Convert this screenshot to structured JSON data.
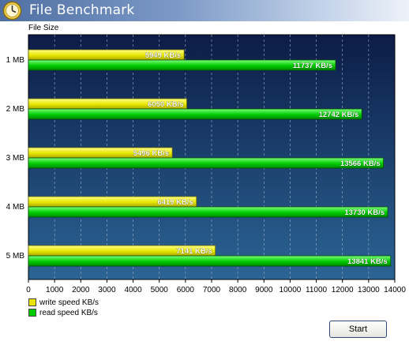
{
  "window": {
    "title": "File Benchmark"
  },
  "chart_data": {
    "type": "bar",
    "orientation": "horizontal",
    "ylabel": "File Size",
    "categories": [
      "1 MB",
      "2 MB",
      "3 MB",
      "4 MB",
      "5 MB"
    ],
    "series": [
      {
        "name": "write speed KB/s",
        "color": "#e6e600",
        "values": [
          5949,
          6050,
          5496,
          6419,
          7141
        ],
        "labels": [
          "5949 KB/s",
          "6050 KB/s",
          "5496 KB/s",
          "6419 KB/s",
          "7141 KB/s"
        ]
      },
      {
        "name": "read speed KB/s",
        "color": "#00cc00",
        "values": [
          11737,
          12742,
          13566,
          13730,
          13841
        ],
        "labels": [
          "11737 KB/s",
          "12742 KB/s",
          "13566 KB/s",
          "13730 KB/s",
          "13841 KB/s"
        ]
      }
    ],
    "xlim": [
      0,
      14000
    ],
    "xticks": [
      "0",
      "1000",
      "2000",
      "3000",
      "4000",
      "5000",
      "6000",
      "7000",
      "8000",
      "9000",
      "10000",
      "11000",
      "12000",
      "13000",
      "14000"
    ],
    "grid": "vertical-dashed",
    "legend": "bottom-left",
    "background": [
      "#0c1c47",
      "#2b6494"
    ]
  },
  "buttons": {
    "start": "Start"
  }
}
